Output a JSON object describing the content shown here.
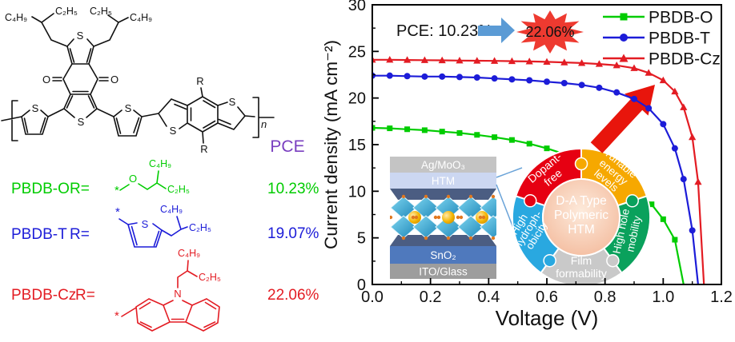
{
  "left_panel": {
    "pce_header": "PCE",
    "pce_header_color": "#7a3fc0",
    "labels": {
      "c4h9": "C₄H₉",
      "c2h5": "C₂H₅",
      "s": "S",
      "o": "O",
      "r": "R",
      "n": "n",
      "star": "*",
      "nitrogen": "N"
    },
    "rows": [
      {
        "name": "PBDB-O",
        "r_eq": "R=",
        "pce": "10.23%",
        "color": "#00cc00"
      },
      {
        "name": "PBDB-T",
        "r_eq": "R=",
        "pce": "19.07%",
        "color": "#1c1cd8"
      },
      {
        "name": "PBDB-Cz",
        "r_eq": "R=",
        "pce": "22.06%",
        "color": "#e31c23"
      }
    ]
  },
  "chart_data": {
    "type": "line",
    "title": "",
    "xlabel": "Voltage (V)",
    "ylabel": "Current density (mA cm⁻²)",
    "xlim": [
      0,
      1.2
    ],
    "ylim": [
      0,
      30
    ],
    "grid": false,
    "legend_position": "top-right",
    "xticks": {
      "values": [
        0,
        0.2,
        0.4,
        0.6,
        0.8,
        1.0,
        1.2
      ],
      "labels": [
        "0.0",
        "0.2",
        "0.4",
        "0.6",
        "0.8",
        "1.0",
        "1.2"
      ]
    },
    "yticks": {
      "values": [
        0,
        5,
        10,
        15,
        20,
        25,
        30
      ],
      "labels": [
        "0",
        "5",
        "10",
        "15",
        "20",
        "25",
        "30"
      ]
    },
    "x_minor_step": 0.1,
    "y_minor_step": 2.5,
    "series": [
      {
        "name": "PBDB-O",
        "color": "#00cc00",
        "marker": "square",
        "points": [
          [
            0,
            16.8
          ],
          [
            0.06,
            16.75
          ],
          [
            0.12,
            16.65
          ],
          [
            0.18,
            16.55
          ],
          [
            0.24,
            16.4
          ],
          [
            0.3,
            16.25
          ],
          [
            0.36,
            16.05
          ],
          [
            0.42,
            15.8
          ],
          [
            0.48,
            15.5
          ],
          [
            0.54,
            15.1
          ],
          [
            0.6,
            14.6
          ],
          [
            0.66,
            14.0
          ],
          [
            0.72,
            13.3
          ],
          [
            0.78,
            12.4
          ],
          [
            0.84,
            11.4
          ],
          [
            0.9,
            10.2
          ],
          [
            0.96,
            8.6
          ],
          [
            1.0,
            7.0
          ],
          [
            1.04,
            4.8
          ],
          [
            1.07,
            0
          ]
        ]
      },
      {
        "name": "PBDB-T",
        "color": "#1c1cd8",
        "marker": "circle",
        "points": [
          [
            0,
            22.4
          ],
          [
            0.06,
            22.4
          ],
          [
            0.12,
            22.35
          ],
          [
            0.18,
            22.3
          ],
          [
            0.24,
            22.3
          ],
          [
            0.3,
            22.25
          ],
          [
            0.36,
            22.2
          ],
          [
            0.42,
            22.1
          ],
          [
            0.48,
            22.0
          ],
          [
            0.54,
            21.9
          ],
          [
            0.6,
            21.75
          ],
          [
            0.66,
            21.6
          ],
          [
            0.72,
            21.4
          ],
          [
            0.78,
            21.1
          ],
          [
            0.84,
            20.6
          ],
          [
            0.9,
            19.9
          ],
          [
            0.95,
            18.9
          ],
          [
            1.0,
            17.2
          ],
          [
            1.04,
            14.6
          ],
          [
            1.07,
            11.3
          ],
          [
            1.1,
            5.8
          ],
          [
            1.12,
            0
          ]
        ]
      },
      {
        "name": "PBDB-Cz",
        "color": "#e31c23",
        "marker": "triangle",
        "points": [
          [
            0,
            24.1
          ],
          [
            0.06,
            24.1
          ],
          [
            0.12,
            24.08
          ],
          [
            0.18,
            24.06
          ],
          [
            0.24,
            24.04
          ],
          [
            0.3,
            24.02
          ],
          [
            0.36,
            24.0
          ],
          [
            0.42,
            23.98
          ],
          [
            0.48,
            23.95
          ],
          [
            0.54,
            23.92
          ],
          [
            0.6,
            23.88
          ],
          [
            0.66,
            23.82
          ],
          [
            0.72,
            23.75
          ],
          [
            0.78,
            23.65
          ],
          [
            0.84,
            23.5
          ],
          [
            0.9,
            23.2
          ],
          [
            0.95,
            22.7
          ],
          [
            1.0,
            21.9
          ],
          [
            1.04,
            20.7
          ],
          [
            1.07,
            19.0
          ],
          [
            1.1,
            15.8
          ],
          [
            1.12,
            11.0
          ],
          [
            1.14,
            0
          ]
        ]
      }
    ]
  },
  "annotation": {
    "text_before": "PCE: 10.23%",
    "text_after": "22.06%",
    "arrow_color": "#5b9bd5",
    "star_color": "#ee3a30"
  },
  "inset_device": {
    "layers": [
      {
        "label": "Ag/MoO₃",
        "color": "#c4c4c4"
      },
      {
        "label": "HTM",
        "color": "#ccd7f1"
      },
      {
        "label": "SnO₂",
        "color": "#4f79bd"
      },
      {
        "label": "ITO/Glass",
        "color": "#9d9d9d"
      }
    ]
  },
  "donut": {
    "center_lines": [
      "D-A Type",
      "Polymeric",
      "HTM"
    ],
    "center_color": "#f2b494",
    "segments": [
      {
        "lines": [
          "Dopant-",
          "free"
        ],
        "color": "#e60012"
      },
      {
        "lines": [
          "Tunable",
          "energy",
          "levels"
        ],
        "color": "#f6a800"
      },
      {
        "lines": [
          "High hole",
          "mobility"
        ],
        "color": "#0aa15c"
      },
      {
        "lines": [
          "Film",
          "formability"
        ],
        "color": "#c9c9c9"
      },
      {
        "lines": [
          "High",
          "hydroph-",
          "obicity"
        ],
        "color": "#29a8e0"
      }
    ]
  }
}
